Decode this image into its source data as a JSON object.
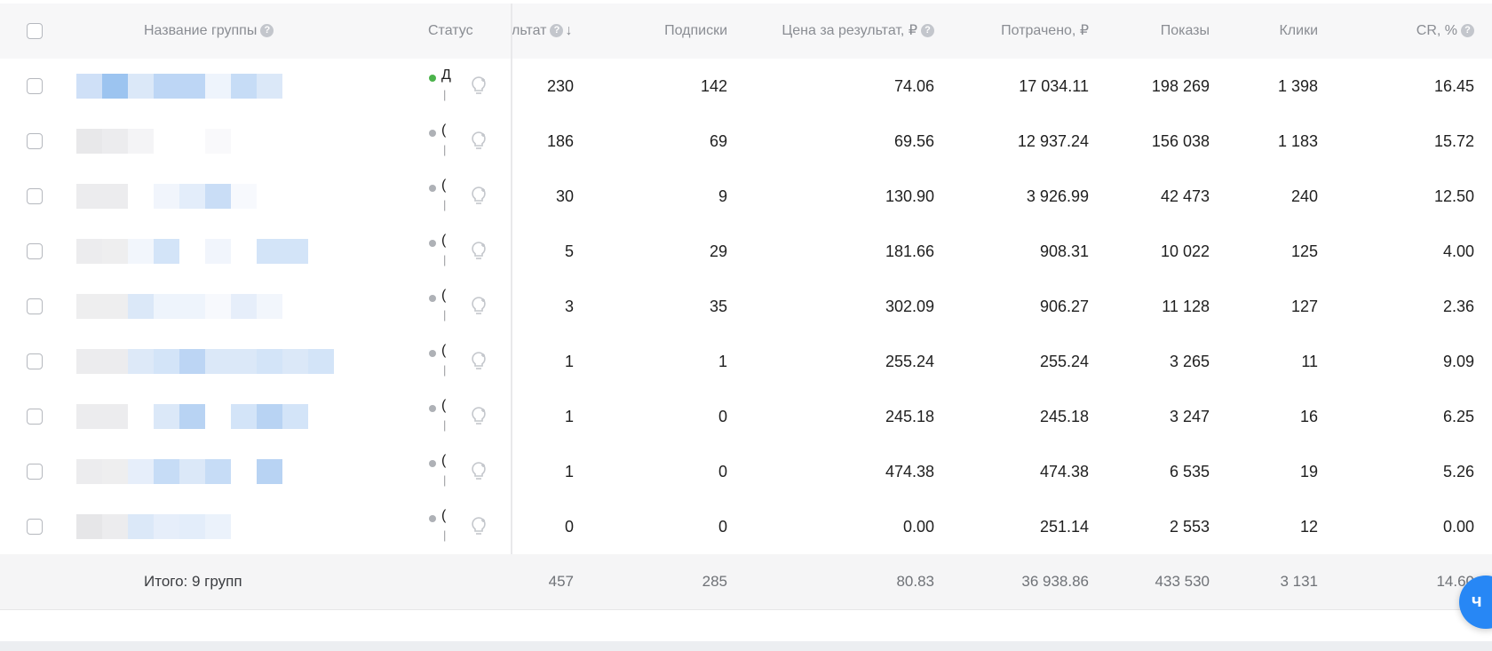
{
  "header": {
    "group_name": "Название группы",
    "status": "Статус",
    "result": "льтат",
    "subscriptions": "Подписки",
    "price_per_result": "Цена за результат, ₽",
    "spent": "Потрачено, ₽",
    "impressions": "Показы",
    "clicks": "Клики",
    "cr": "CR, %"
  },
  "rows": [
    {
      "status_color": "#4bb34b",
      "status_letter": "Д",
      "result": "230",
      "subscriptions": "142",
      "price": "74.06",
      "spent": "17 034.11",
      "impressions": "198 269",
      "clicks": "1 398",
      "cr": "16.45"
    },
    {
      "status_color": "#aeb1b6",
      "status_letter": "(",
      "result": "186",
      "subscriptions": "69",
      "price": "69.56",
      "spent": "12 937.24",
      "impressions": "156 038",
      "clicks": "1 183",
      "cr": "15.72"
    },
    {
      "status_color": "#aeb1b6",
      "status_letter": "(",
      "result": "30",
      "subscriptions": "9",
      "price": "130.90",
      "spent": "3 926.99",
      "impressions": "42 473",
      "clicks": "240",
      "cr": "12.50"
    },
    {
      "status_color": "#aeb1b6",
      "status_letter": "(",
      "result": "5",
      "subscriptions": "29",
      "price": "181.66",
      "spent": "908.31",
      "impressions": "10 022",
      "clicks": "125",
      "cr": "4.00"
    },
    {
      "status_color": "#aeb1b6",
      "status_letter": "(",
      "result": "3",
      "subscriptions": "35",
      "price": "302.09",
      "spent": "906.27",
      "impressions": "11 128",
      "clicks": "127",
      "cr": "2.36"
    },
    {
      "status_color": "#aeb1b6",
      "status_letter": "(",
      "result": "1",
      "subscriptions": "1",
      "price": "255.24",
      "spent": "255.24",
      "impressions": "3 265",
      "clicks": "11",
      "cr": "9.09"
    },
    {
      "status_color": "#aeb1b6",
      "status_letter": "(",
      "result": "1",
      "subscriptions": "0",
      "price": "245.18",
      "spent": "245.18",
      "impressions": "3 247",
      "clicks": "16",
      "cr": "6.25"
    },
    {
      "status_color": "#aeb1b6",
      "status_letter": "(",
      "result": "1",
      "subscriptions": "0",
      "price": "474.38",
      "spent": "474.38",
      "impressions": "6 535",
      "clicks": "19",
      "cr": "5.26"
    },
    {
      "status_color": "#aeb1b6",
      "status_letter": "(",
      "result": "0",
      "subscriptions": "0",
      "price": "0.00",
      "spent": "251.14",
      "impressions": "2 553",
      "clicks": "12",
      "cr": "0.00"
    }
  ],
  "footer": {
    "label": "Итого: 9 групп",
    "result": "457",
    "subscriptions": "285",
    "price": "80.83",
    "spent": "36 938.86",
    "impressions": "433 530",
    "clicks": "3 131",
    "cr": "14.60"
  },
  "colors": {
    "active_status": "#4bb34b",
    "inactive_status": "#aeb1b6",
    "chat_button": "#2787f5"
  },
  "icons": {
    "help": "question-circle-icon",
    "sort": "arrow-down-icon",
    "idea": "lightbulb-icon",
    "chat": "vk-chat-icon"
  }
}
